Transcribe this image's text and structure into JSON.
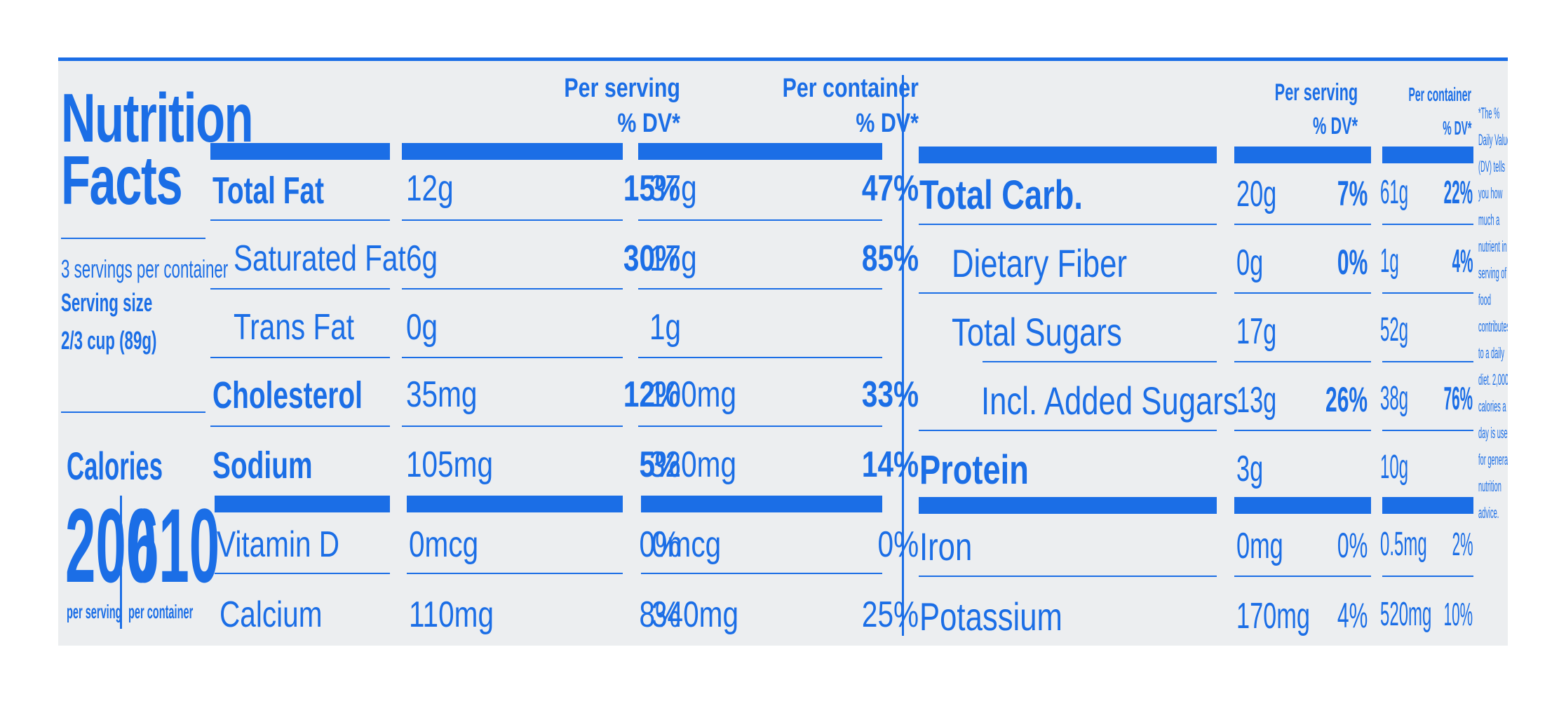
{
  "label": {
    "title_line1": "Nutrition",
    "title_line2": "Facts",
    "servings": "3 servings per container",
    "serving_size_label": "Serving size",
    "serving_size_value": "2/3 cup (89g)",
    "calories_label": "Calories",
    "calories_per_serving": "200",
    "calories_per_container": "610",
    "per_serving_caption": "per serving",
    "per_container_caption": "per container"
  },
  "headers": {
    "per_serving": "Per serving",
    "per_container": "Per container",
    "dv": "% DV*"
  },
  "left_rows": [
    {
      "name": "Total Fat",
      "s_amt": "12g",
      "s_dv": "15%",
      "c_amt": "37g",
      "c_dv": "47%"
    },
    {
      "name": "Saturated Fat",
      "s_amt": "6g",
      "s_dv": "30%",
      "c_amt": "17g",
      "c_dv": "85%"
    },
    {
      "name": "Trans Fat",
      "s_amt": "0g",
      "s_dv": "",
      "c_amt": "1g",
      "c_dv": ""
    },
    {
      "name": "Cholesterol",
      "s_amt": "35mg",
      "s_dv": "12%",
      "c_amt": "100mg",
      "c_dv": "33%"
    },
    {
      "name": "Sodium",
      "s_amt": "105mg",
      "s_dv": "5%",
      "c_amt": "320mg",
      "c_dv": "14%"
    },
    {
      "name": "Vitamin D",
      "s_amt": "0mcg",
      "s_dv": "0%",
      "c_amt": "0mcg",
      "c_dv": "0%"
    },
    {
      "name": "Calcium",
      "s_amt": "110mg",
      "s_dv": "8%",
      "c_amt": "340mg",
      "c_dv": "25%"
    }
  ],
  "right_rows": [
    {
      "name": "Total Carb.",
      "s_amt": "20g",
      "s_dv": "7%",
      "c_amt": "61g",
      "c_dv": "22%"
    },
    {
      "name": "Dietary Fiber",
      "s_amt": "0g",
      "s_dv": "0%",
      "c_amt": "1g",
      "c_dv": "4%"
    },
    {
      "name": "Total Sugars",
      "s_amt": "17g",
      "s_dv": "",
      "c_amt": "52g",
      "c_dv": ""
    },
    {
      "name": "Incl. Added Sugars",
      "s_amt": "13g",
      "s_dv": "26%",
      "c_amt": "38g",
      "c_dv": "76%"
    },
    {
      "name": "Protein",
      "s_amt": "3g",
      "s_dv": "",
      "c_amt": "10g",
      "c_dv": ""
    },
    {
      "name": "Iron",
      "s_amt": "0mg",
      "s_dv": "0%",
      "c_amt": "0.5mg",
      "c_dv": "2%"
    },
    {
      "name": "Potassium",
      "s_amt": "170mg",
      "s_dv": "4%",
      "c_amt": "520mg",
      "c_dv": "10%"
    }
  ],
  "footnote": "*The % Daily Value (DV) tells you how much a nutrient in a serving of food contributes to a daily diet. 2,000 calories a day is used for general nutrition advice.",
  "colors": {
    "ink": "#1b6ee6",
    "background": "#eceef0"
  }
}
